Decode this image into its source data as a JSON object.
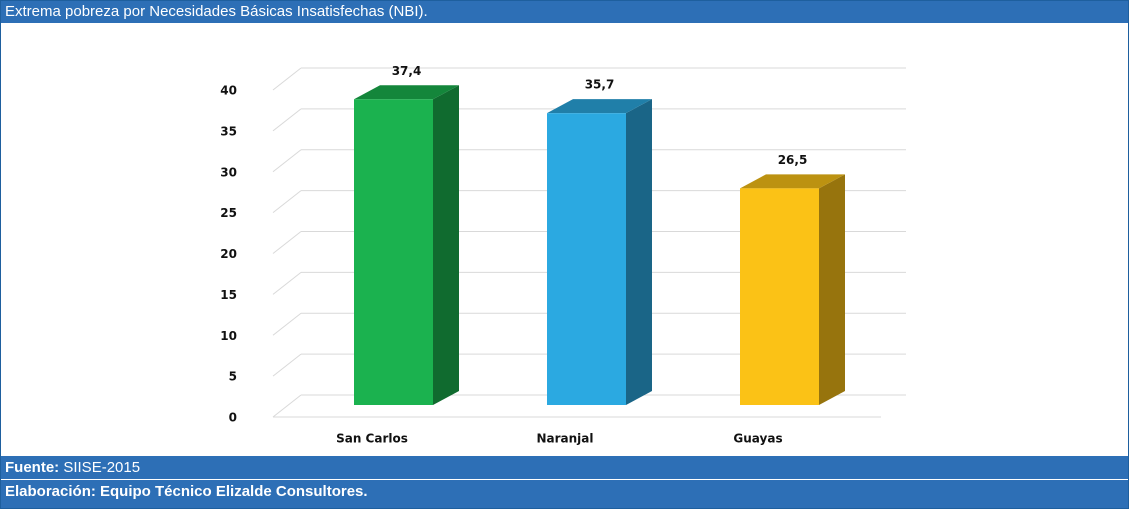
{
  "header": {
    "title": "Extrema pobreza por Necesidades Básicas Insatisfechas (NBI)."
  },
  "chart_data": {
    "type": "bar3d",
    "categories": [
      "San Carlos",
      "Naranjal",
      "Guayas"
    ],
    "values": [
      37.4,
      35.7,
      26.5
    ],
    "value_labels": [
      "37,4",
      "35,7",
      "26,5"
    ],
    "colors": [
      "#1bb24f",
      "#2ba9e1",
      "#fbc216"
    ],
    "ylim": [
      0,
      40
    ],
    "yticks": [
      0,
      5,
      10,
      15,
      20,
      25,
      30,
      35,
      40
    ],
    "grid": true
  },
  "footer": {
    "source_label": "Fuente:",
    "source": "SIISE-2015",
    "credit": "Elaboración: Equipo Técnico Elizalde Consultores."
  }
}
